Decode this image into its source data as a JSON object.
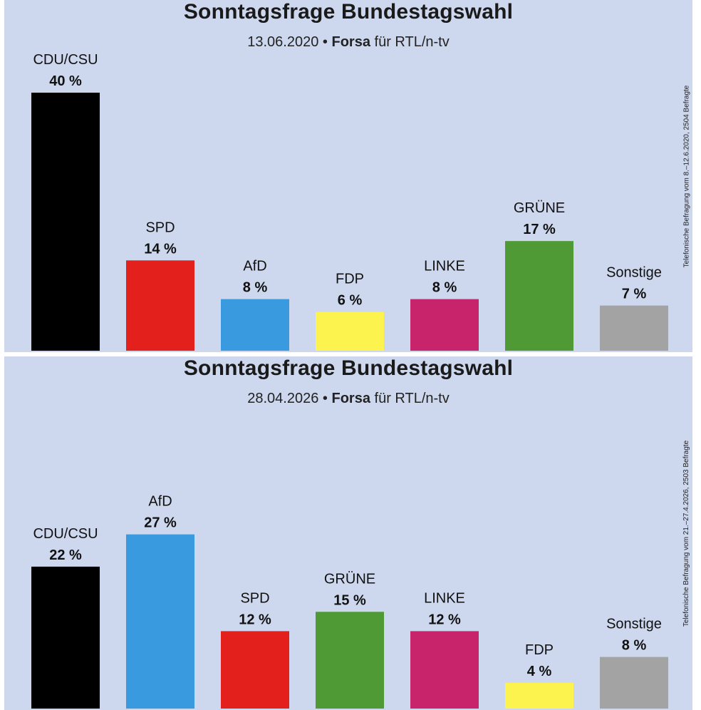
{
  "charts": [
    {
      "title": "Sonntagsfrage Bundestagswahl",
      "subtitle_date": "13.06.2020",
      "subtitle_sep": " • ",
      "subtitle_source_bold": "Forsa",
      "subtitle_source_rest": " für RTL/n-tv",
      "side_note": "Telefonische Befragung vom 8.–12.6.2020, 2504 Befragte"
    },
    {
      "title": "Sonntagsfrage Bundestagswahl",
      "subtitle_date": "28.04.2026",
      "subtitle_sep": " • ",
      "subtitle_source_bold": "Forsa",
      "subtitle_source_rest": " für RTL/n-tv",
      "side_note": "Telefonische Befragung vom 21.–27.4.2026, 2503 Befragte"
    }
  ],
  "chart_data": [
    {
      "type": "bar",
      "title": "Sonntagsfrage Bundestagswahl",
      "categories": [
        "CDU/CSU",
        "SPD",
        "AfD",
        "FDP",
        "LINKE",
        "GRÜNE",
        "Sonstige"
      ],
      "values": [
        40,
        14,
        8,
        6,
        8,
        17,
        7
      ],
      "value_labels": [
        "40 %",
        "14 %",
        "8 %",
        "6 %",
        "8 %",
        "17 %",
        "7 %"
      ],
      "colors": [
        "#000000",
        "#e3201b",
        "#3a9ae0",
        "#fdf34f",
        "#c8246b",
        "#4f9a35",
        "#a3a3a3"
      ],
      "unit": "%",
      "grid": false,
      "legend": "none"
    },
    {
      "type": "bar",
      "title": "Sonntagsfrage Bundestagswahl",
      "categories": [
        "CDU/CSU",
        "AfD",
        "SPD",
        "GRÜNE",
        "LINKE",
        "FDP",
        "Sonstige"
      ],
      "values": [
        22,
        27,
        12,
        15,
        12,
        4,
        8
      ],
      "value_labels": [
        "22 %",
        "27 %",
        "12 %",
        "15 %",
        "12 %",
        "4 %",
        "8 %"
      ],
      "colors": [
        "#000000",
        "#3a9ae0",
        "#e3201b",
        "#4f9a35",
        "#c8246b",
        "#fdf34f",
        "#a3a3a3"
      ],
      "unit": "%",
      "grid": false,
      "legend": "none"
    }
  ]
}
